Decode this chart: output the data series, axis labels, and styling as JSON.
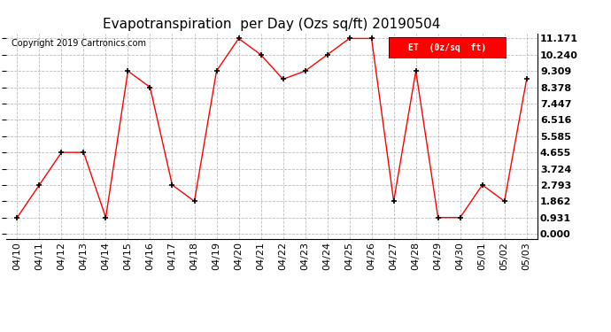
{
  "title": "Evapotranspiration  per Day (Ozs sq/ft) 20190504",
  "copyright": "Copyright 2019 Cartronics.com",
  "legend_label": "ET  (0z/sq  ft)",
  "x_labels": [
    "04/10",
    "04/11",
    "04/12",
    "04/13",
    "04/14",
    "04/15",
    "04/16",
    "04/17",
    "04/18",
    "04/19",
    "04/20",
    "04/21",
    "04/22",
    "04/23",
    "04/24",
    "04/25",
    "04/26",
    "04/27",
    "04/28",
    "04/29",
    "04/30",
    "05/01",
    "05/02",
    "05/03"
  ],
  "y_values": [
    0.931,
    2.793,
    4.655,
    4.655,
    0.931,
    9.309,
    8.378,
    2.793,
    1.862,
    9.309,
    11.171,
    10.24,
    8.84,
    9.309,
    10.24,
    11.171,
    11.171,
    1.862,
    9.309,
    0.931,
    0.931,
    2.793,
    1.862,
    8.84
  ],
  "y_ticks": [
    0.0,
    0.931,
    1.862,
    2.793,
    3.724,
    4.655,
    5.585,
    6.516,
    7.447,
    8.378,
    9.309,
    10.24,
    11.171
  ],
  "line_color": "red",
  "marker_color": "black",
  "background_color": "white",
  "grid_color": "#aaaaaa",
  "title_fontsize": 11,
  "legend_bg": "red",
  "legend_fg": "white",
  "ylim": [
    0.0,
    11.171
  ],
  "copyright_fontsize": 7,
  "tick_fontsize": 8
}
